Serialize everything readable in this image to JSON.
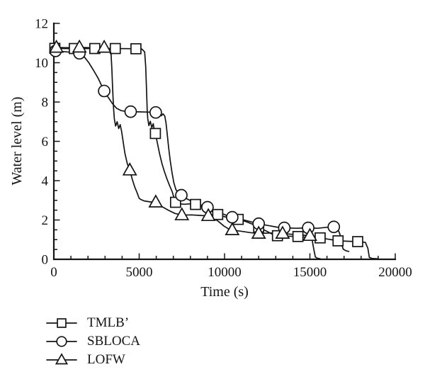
{
  "chart_data": {
    "type": "line",
    "title": "",
    "xlabel": "Time (s)",
    "ylabel": "Water level (m)",
    "xlim": [
      0,
      20000
    ],
    "ylim": [
      0,
      12
    ],
    "x_major_ticks": [
      0,
      5000,
      10000,
      15000,
      20000
    ],
    "x_minor_step": 1000,
    "y_major_ticks": [
      0,
      2,
      4,
      6,
      8,
      10,
      12
    ],
    "y_minor_step": 0.5,
    "grid": false,
    "legend_position": "below-left",
    "ink_color": "#141414",
    "background_color": "#ffffff",
    "series": [
      {
        "name": "TMLB’",
        "marker": "square",
        "color": "#141414",
        "line": [
          [
            0,
            10.74
          ],
          [
            600,
            10.72
          ],
          [
            1200,
            10.72
          ],
          [
            2400,
            10.72
          ],
          [
            3600,
            10.72
          ],
          [
            4810,
            10.71
          ],
          [
            5150,
            10.7
          ],
          [
            5320,
            10.55
          ],
          [
            5380,
            9.8
          ],
          [
            5430,
            8.6
          ],
          [
            5470,
            7.6
          ],
          [
            5500,
            7.15
          ],
          [
            5570,
            6.8
          ],
          [
            5650,
            7.02
          ],
          [
            5740,
            6.7
          ],
          [
            5820,
            6.9
          ],
          [
            5890,
            6.55
          ],
          [
            5950,
            6.4
          ],
          [
            6060,
            5.95
          ],
          [
            6200,
            5.35
          ],
          [
            6340,
            4.85
          ],
          [
            6480,
            4.45
          ],
          [
            6630,
            4.08
          ],
          [
            6780,
            3.75
          ],
          [
            6930,
            3.45
          ],
          [
            7040,
            3.12
          ],
          [
            7130,
            2.9
          ],
          [
            7320,
            2.82
          ],
          [
            7650,
            2.8
          ],
          [
            8000,
            2.82
          ],
          [
            8300,
            2.79
          ],
          [
            8650,
            2.68
          ],
          [
            9000,
            2.55
          ],
          [
            9350,
            2.4
          ],
          [
            9600,
            2.28
          ],
          [
            9950,
            2.18
          ],
          [
            10350,
            2.08
          ],
          [
            10800,
            2.03
          ],
          [
            11250,
            1.92
          ],
          [
            11650,
            1.78
          ],
          [
            12000,
            1.64
          ],
          [
            12400,
            1.46
          ],
          [
            12800,
            1.28
          ],
          [
            13100,
            1.2
          ],
          [
            13600,
            1.18
          ],
          [
            14300,
            1.16
          ],
          [
            14800,
            1.12
          ],
          [
            15600,
            1.09
          ],
          [
            16100,
            1.02
          ],
          [
            16650,
            0.94
          ],
          [
            17200,
            0.92
          ],
          [
            17800,
            0.9
          ],
          [
            18250,
            0.86
          ],
          [
            18400,
            0.55
          ],
          [
            18480,
            0.1
          ],
          [
            18650,
            0.04
          ],
          [
            19000,
            0.03
          ]
        ],
        "marker_points": [
          [
            60,
            10.73
          ],
          [
            1200,
            10.72
          ],
          [
            2400,
            10.72
          ],
          [
            3600,
            10.72
          ],
          [
            4810,
            10.71
          ],
          [
            5950,
            6.4
          ],
          [
            7130,
            2.9
          ],
          [
            8300,
            2.79
          ],
          [
            9600,
            2.28
          ],
          [
            10800,
            2.03
          ],
          [
            12000,
            1.64
          ],
          [
            13100,
            1.2
          ],
          [
            14300,
            1.16
          ],
          [
            15600,
            1.09
          ],
          [
            16650,
            0.94
          ],
          [
            17800,
            0.9
          ]
        ]
      },
      {
        "name": "SBLOCA",
        "marker": "circle",
        "color": "#141414",
        "line": [
          [
            0,
            10.62
          ],
          [
            500,
            10.57
          ],
          [
            1000,
            10.53
          ],
          [
            1500,
            10.48
          ],
          [
            1780,
            10.3
          ],
          [
            2050,
            10.0
          ],
          [
            2320,
            9.62
          ],
          [
            2600,
            9.2
          ],
          [
            2950,
            8.56
          ],
          [
            3200,
            8.22
          ],
          [
            3430,
            7.92
          ],
          [
            3680,
            7.68
          ],
          [
            3950,
            7.56
          ],
          [
            4250,
            7.52
          ],
          [
            4500,
            7.51
          ],
          [
            5000,
            7.5
          ],
          [
            5500,
            7.49
          ],
          [
            5970,
            7.47
          ],
          [
            6180,
            7.43
          ],
          [
            6300,
            7.3
          ],
          [
            6400,
            7.4
          ],
          [
            6500,
            7.28
          ],
          [
            6570,
            6.95
          ],
          [
            6640,
            6.4
          ],
          [
            6720,
            5.7
          ],
          [
            6820,
            5.0
          ],
          [
            6920,
            4.42
          ],
          [
            7030,
            3.9
          ],
          [
            7150,
            3.55
          ],
          [
            7300,
            3.35
          ],
          [
            7470,
            3.26
          ],
          [
            7700,
            3.12
          ],
          [
            8000,
            2.98
          ],
          [
            8350,
            2.85
          ],
          [
            8700,
            2.74
          ],
          [
            9000,
            2.65
          ],
          [
            9350,
            2.52
          ],
          [
            9700,
            2.38
          ],
          [
            10100,
            2.24
          ],
          [
            10450,
            2.14
          ],
          [
            10900,
            2.05
          ],
          [
            11450,
            1.93
          ],
          [
            12000,
            1.81
          ],
          [
            12550,
            1.72
          ],
          [
            13050,
            1.64
          ],
          [
            13500,
            1.6
          ],
          [
            14200,
            1.58
          ],
          [
            14900,
            1.6
          ],
          [
            15450,
            1.58
          ],
          [
            16000,
            1.63
          ],
          [
            16400,
            1.65
          ],
          [
            16600,
            1.6
          ],
          [
            16750,
            1.3
          ],
          [
            16850,
            0.8
          ],
          [
            16950,
            0.52
          ],
          [
            17100,
            0.44
          ],
          [
            17280,
            0.4
          ]
        ],
        "marker_points": [
          [
            100,
            10.6
          ],
          [
            1500,
            10.48
          ],
          [
            2950,
            8.56
          ],
          [
            4500,
            7.51
          ],
          [
            5970,
            7.47
          ],
          [
            7470,
            3.26
          ],
          [
            9000,
            2.65
          ],
          [
            10450,
            2.14
          ],
          [
            12000,
            1.81
          ],
          [
            13500,
            1.6
          ],
          [
            14900,
            1.6
          ],
          [
            16400,
            1.65
          ]
        ]
      },
      {
        "name": "LOFW",
        "marker": "triangle",
        "color": "#141414",
        "line": [
          [
            0,
            10.78
          ],
          [
            700,
            10.76
          ],
          [
            1500,
            10.78
          ],
          [
            2200,
            10.76
          ],
          [
            2950,
            10.77
          ],
          [
            3200,
            10.73
          ],
          [
            3350,
            10.5
          ],
          [
            3400,
            9.7
          ],
          [
            3450,
            8.6
          ],
          [
            3500,
            7.7
          ],
          [
            3545,
            7.15
          ],
          [
            3620,
            6.78
          ],
          [
            3710,
            7.0
          ],
          [
            3800,
            6.65
          ],
          [
            3890,
            6.85
          ],
          [
            3970,
            6.5
          ],
          [
            4060,
            6.0
          ],
          [
            4160,
            5.4
          ],
          [
            4300,
            4.88
          ],
          [
            4450,
            4.53
          ],
          [
            4600,
            4.05
          ],
          [
            4750,
            3.65
          ],
          [
            4880,
            3.38
          ],
          [
            5000,
            3.1
          ],
          [
            5100,
            3.04
          ],
          [
            5300,
            2.97
          ],
          [
            5650,
            2.92
          ],
          [
            5970,
            2.9
          ],
          [
            6300,
            2.7
          ],
          [
            6700,
            2.5
          ],
          [
            7100,
            2.33
          ],
          [
            7500,
            2.25
          ],
          [
            8050,
            2.26
          ],
          [
            8600,
            2.23
          ],
          [
            9050,
            2.21
          ],
          [
            9350,
            2.1
          ],
          [
            9650,
            1.92
          ],
          [
            9950,
            1.7
          ],
          [
            10250,
            1.54
          ],
          [
            10450,
            1.49
          ],
          [
            10950,
            1.43
          ],
          [
            11500,
            1.36
          ],
          [
            12000,
            1.31
          ],
          [
            12700,
            1.34
          ],
          [
            13400,
            1.31
          ],
          [
            14000,
            1.27
          ],
          [
            14600,
            1.23
          ],
          [
            15000,
            1.2
          ],
          [
            15120,
            1.05
          ],
          [
            15220,
            0.55
          ],
          [
            15320,
            0.12
          ],
          [
            15450,
            0.05
          ],
          [
            15600,
            0.03
          ]
        ],
        "marker_points": [
          [
            150,
            10.77
          ],
          [
            1500,
            10.78
          ],
          [
            2950,
            10.77
          ],
          [
            4450,
            4.53
          ],
          [
            5970,
            2.9
          ],
          [
            7500,
            2.25
          ],
          [
            9050,
            2.21
          ],
          [
            10450,
            1.49
          ],
          [
            12000,
            1.31
          ],
          [
            13400,
            1.31
          ],
          [
            15000,
            1.2
          ]
        ]
      }
    ]
  }
}
